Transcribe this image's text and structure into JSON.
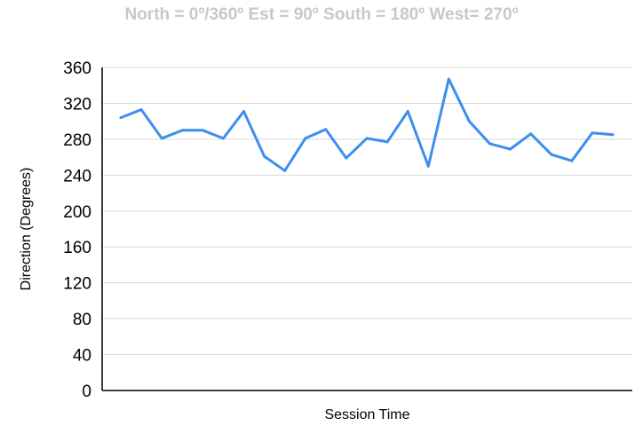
{
  "chart_data": {
    "type": "line",
    "title": "North = 0º/360º Est = 90º South = 180º West= 270º",
    "xlabel": "Session Time",
    "ylabel": "Direction (Degrees)",
    "ylim": [
      0,
      360
    ],
    "yticks": [
      0,
      40,
      80,
      120,
      160,
      200,
      240,
      280,
      320,
      360
    ],
    "grid": true,
    "legend": "none",
    "series": [
      {
        "color": "#3d8fee",
        "values": [
          304,
          313,
          281,
          290,
          290,
          281,
          311,
          261,
          245,
          281,
          291,
          259,
          281,
          277,
          311,
          250,
          347,
          300,
          275,
          269,
          286,
          263,
          256,
          287,
          285
        ]
      }
    ]
  }
}
